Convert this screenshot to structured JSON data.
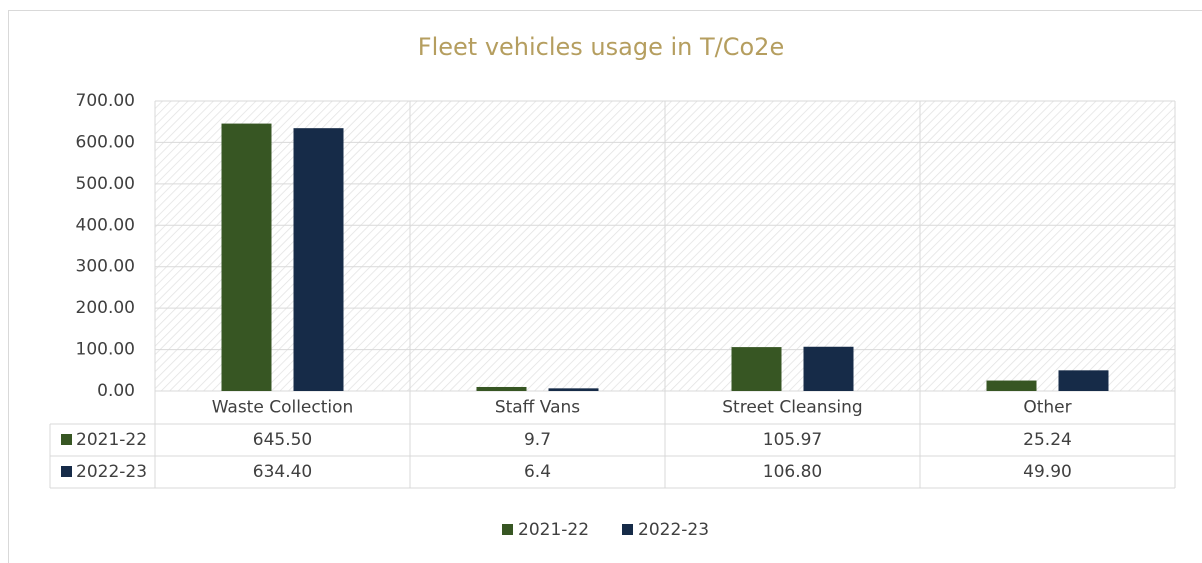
{
  "chart_data": {
    "type": "bar",
    "title": "Fleet vehicles usage in T/Co2e",
    "categories": [
      "Waste Collection",
      "Staff Vans",
      "Street Cleansing",
      "Other"
    ],
    "series": [
      {
        "name": "2021-22",
        "color": "#375623",
        "values": [
          645.5,
          9.7,
          105.97,
          25.24
        ],
        "value_labels": [
          "645.50",
          "9.7",
          "105.97",
          "25.24"
        ]
      },
      {
        "name": "2022-23",
        "color": "#162b48",
        "values": [
          634.4,
          6.4,
          106.8,
          49.9
        ],
        "value_labels": [
          "634.40",
          "6.4",
          "106.80",
          "49.90"
        ]
      }
    ],
    "ylim": [
      0,
      700
    ],
    "yticks": [
      {
        "value": 0,
        "label": "0.00"
      },
      {
        "value": 100,
        "label": "100.00"
      },
      {
        "value": 200,
        "label": "200.00"
      },
      {
        "value": 300,
        "label": "300.00"
      },
      {
        "value": 400,
        "label": "400.00"
      },
      {
        "value": 500,
        "label": "500.00"
      },
      {
        "value": 600,
        "label": "600.00"
      },
      {
        "value": 700,
        "label": "700.00"
      }
    ],
    "grid": true,
    "legend": "bottom"
  }
}
